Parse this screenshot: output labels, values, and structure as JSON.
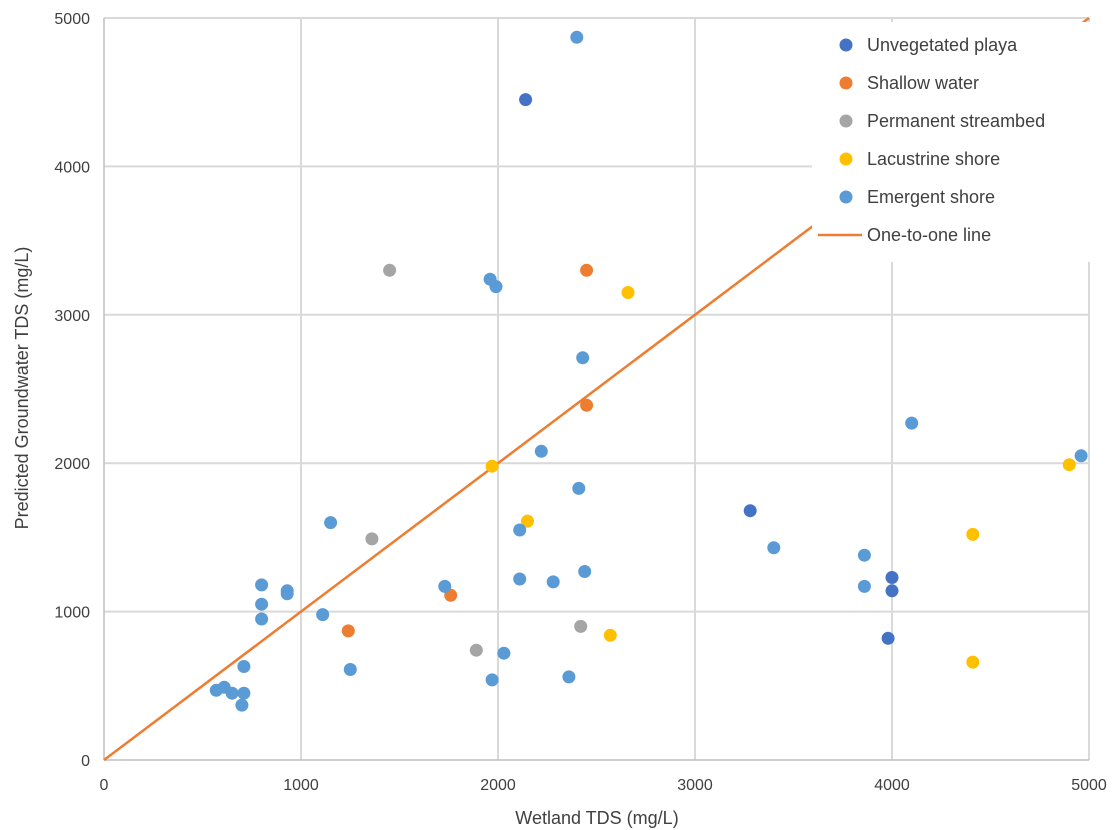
{
  "chart_data": {
    "type": "scatter",
    "title": "",
    "xlabel": "Wetland TDS (mg/L)",
    "ylabel": "Predicted Groundwater TDS (mg/L)",
    "xlim": [
      0,
      5000
    ],
    "ylim": [
      0,
      5000
    ],
    "x_ticks": [
      0,
      1000,
      2000,
      3000,
      4000,
      5000
    ],
    "y_ticks": [
      0,
      1000,
      2000,
      3000,
      4000,
      5000
    ],
    "grid": true,
    "legend_position": "top-right",
    "series": [
      {
        "name": "Unvegetated playa",
        "color": "#4472C4",
        "points": [
          [
            2140,
            4450
          ],
          [
            3280,
            1680
          ],
          [
            4000,
            1230
          ],
          [
            4000,
            1140
          ],
          [
            3980,
            820
          ]
        ]
      },
      {
        "name": "Shallow water",
        "color": "#ED7D31",
        "points": [
          [
            2450,
            3300
          ],
          [
            2450,
            2390
          ],
          [
            1760,
            1110
          ],
          [
            1240,
            870
          ]
        ]
      },
      {
        "name": "Permanent streambed",
        "color": "#A5A5A5",
        "points": [
          [
            1450,
            3300
          ],
          [
            1360,
            1490
          ],
          [
            2420,
            900
          ],
          [
            1890,
            740
          ]
        ]
      },
      {
        "name": "Lacustrine shore",
        "color": "#FFC000",
        "points": [
          [
            2660,
            3150
          ],
          [
            1970,
            1980
          ],
          [
            2150,
            1610
          ],
          [
            4410,
            1520
          ],
          [
            4900,
            1990
          ],
          [
            2570,
            840
          ],
          [
            4410,
            660
          ]
        ]
      },
      {
        "name": "Emergent shore",
        "color": "#5B9BD5",
        "points": [
          [
            2400,
            4870
          ],
          [
            1960,
            3240
          ],
          [
            1990,
            3190
          ],
          [
            2430,
            2710
          ],
          [
            4100,
            2270
          ],
          [
            4960,
            2050
          ],
          [
            2220,
            2080
          ],
          [
            2410,
            1830
          ],
          [
            1150,
            1600
          ],
          [
            2110,
            1550
          ],
          [
            3400,
            1430
          ],
          [
            3860,
            1380
          ],
          [
            2440,
            1270
          ],
          [
            1730,
            1170
          ],
          [
            2110,
            1220
          ],
          [
            2280,
            1200
          ],
          [
            3860,
            1170
          ],
          [
            800,
            1180
          ],
          [
            930,
            1140
          ],
          [
            930,
            1120
          ],
          [
            800,
            1050
          ],
          [
            800,
            950
          ],
          [
            1110,
            980
          ],
          [
            710,
            630
          ],
          [
            1250,
            610
          ],
          [
            2030,
            720
          ],
          [
            1970,
            540
          ],
          [
            2360,
            560
          ],
          [
            570,
            470
          ],
          [
            610,
            490
          ],
          [
            650,
            450
          ],
          [
            710,
            450
          ],
          [
            700,
            370
          ]
        ]
      },
      {
        "name": "One-to-one line",
        "color": "#ED7D31",
        "line": [
          [
            0,
            0
          ],
          [
            5000,
            5000
          ]
        ]
      }
    ]
  }
}
